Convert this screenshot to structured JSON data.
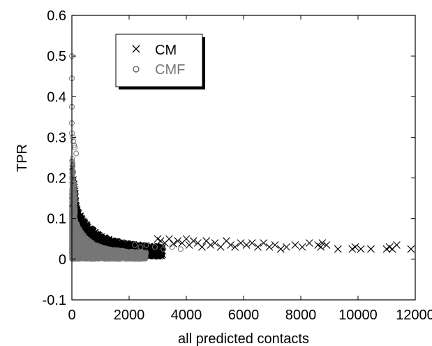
{
  "chart_data": {
    "type": "scatter",
    "xlabel": "all predicted contacts",
    "ylabel": "TPR",
    "xlim": [
      0,
      12000
    ],
    "ylim": [
      -0.1,
      0.6
    ],
    "x_ticks": [
      0,
      2000,
      4000,
      6000,
      8000,
      10000,
      12000
    ],
    "x_tick_labels": [
      "0",
      "2000",
      "4000",
      "6000",
      "8000",
      "10000",
      "12000"
    ],
    "y_ticks": [
      -0.1,
      0,
      0.1,
      0.2,
      0.3,
      0.4,
      0.5,
      0.6
    ],
    "y_tick_labels": [
      "-0.1",
      "0",
      "0.1",
      "0.2",
      "0.3",
      "0.4",
      "0.5",
      "0.6"
    ],
    "grid": false,
    "legend_position": "top-left",
    "series": [
      {
        "name": "CM",
        "marker": "x",
        "color": "#000000",
        "points": [
          [
            3000,
            0.05
          ],
          [
            3100,
            0.045
          ],
          [
            3250,
            0.04
          ],
          [
            3400,
            0.05
          ],
          [
            3550,
            0.038
          ],
          [
            3700,
            0.045
          ],
          [
            3850,
            0.04
          ],
          [
            4000,
            0.05
          ],
          [
            4100,
            0.035
          ],
          [
            4250,
            0.045
          ],
          [
            4400,
            0.04
          ],
          [
            4550,
            0.03
          ],
          [
            4700,
            0.045
          ],
          [
            4850,
            0.035
          ],
          [
            5000,
            0.04
          ],
          [
            5200,
            0.03
          ],
          [
            5400,
            0.045
          ],
          [
            5550,
            0.035
          ],
          [
            5700,
            0.03
          ],
          [
            5900,
            0.04
          ],
          [
            6100,
            0.035
          ],
          [
            6300,
            0.04
          ],
          [
            6500,
            0.03
          ],
          [
            6700,
            0.04
          ],
          [
            6900,
            0.03
          ],
          [
            7100,
            0.035
          ],
          [
            7300,
            0.025
          ],
          [
            7500,
            0.03
          ],
          [
            7800,
            0.035
          ],
          [
            8050,
            0.03
          ],
          [
            8300,
            0.04
          ],
          [
            8600,
            0.035
          ],
          [
            8700,
            0.03
          ],
          [
            8750,
            0.04
          ],
          [
            8900,
            0.035
          ],
          [
            9300,
            0.025
          ],
          [
            9800,
            0.025
          ],
          [
            9900,
            0.03
          ],
          [
            10100,
            0.025
          ],
          [
            10450,
            0.025
          ],
          [
            11000,
            0.025
          ],
          [
            11100,
            0.03
          ],
          [
            11200,
            0.025
          ],
          [
            11350,
            0.035
          ],
          [
            11850,
            0.025
          ]
        ]
      },
      {
        "name": "CMF",
        "marker": "o",
        "color": "#777777",
        "points": [
          [
            0,
            0.5
          ],
          [
            0,
            0.445
          ],
          [
            0,
            0.375
          ],
          [
            0,
            0.335
          ],
          [
            0,
            0.31
          ],
          [
            30,
            0.3
          ],
          [
            50,
            0.29
          ],
          [
            80,
            0.28
          ],
          [
            100,
            0.275
          ],
          [
            150,
            0.26
          ],
          [
            2200,
            0.035
          ],
          [
            2400,
            0.03
          ],
          [
            2600,
            0.035
          ],
          [
            2900,
            0.03
          ],
          [
            3200,
            0.025
          ],
          [
            3500,
            0.03
          ],
          [
            3800,
            0.025
          ]
        ]
      }
    ]
  }
}
